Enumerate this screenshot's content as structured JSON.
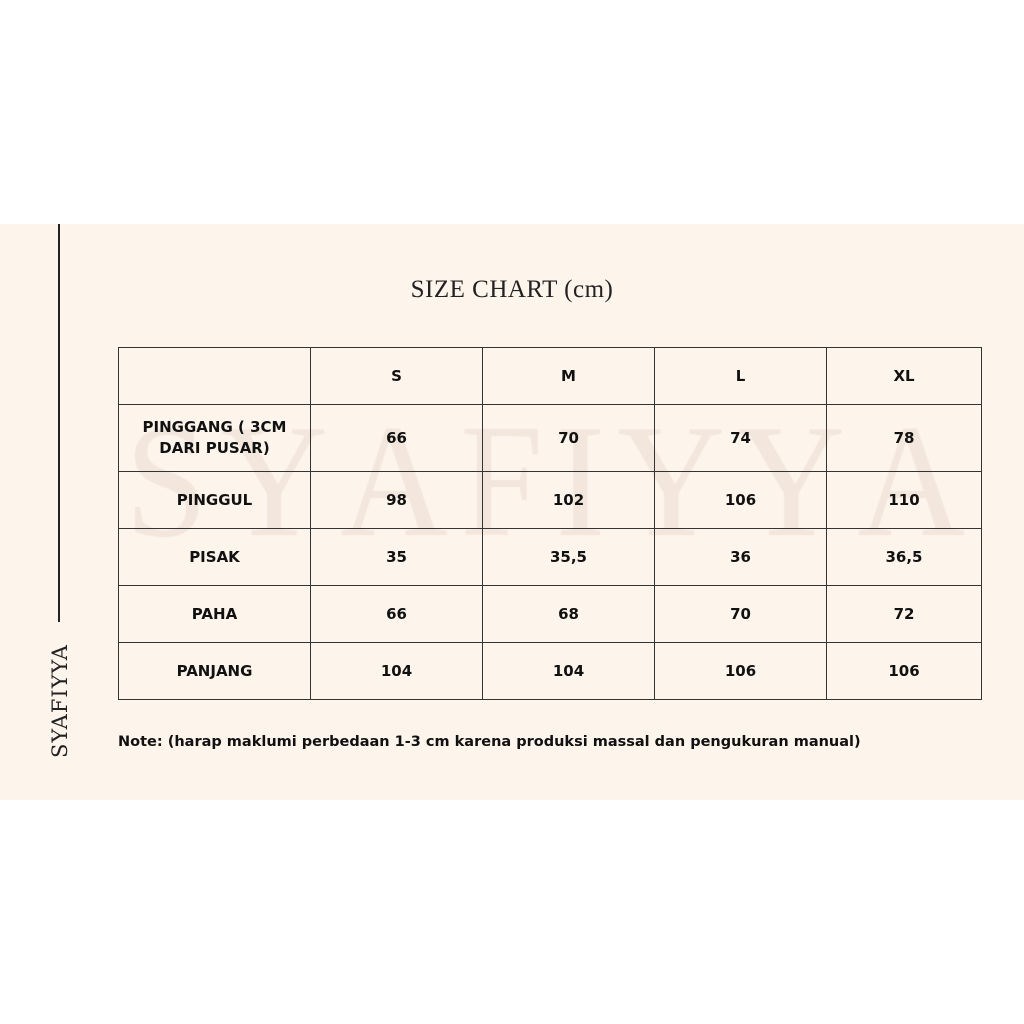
{
  "brand": "SYAFIYYA",
  "watermark": "SYAFIYYA",
  "title": "SIZE CHART (cm)",
  "table": {
    "headers": [
      "",
      "S",
      "M",
      "L",
      "XL"
    ],
    "rows": [
      {
        "label": "PINGGANG ( 3CM DARI PUSAR)",
        "values": [
          "66",
          "70",
          "74",
          "78"
        ]
      },
      {
        "label": "PINGGUL",
        "values": [
          "98",
          "102",
          "106",
          "110"
        ]
      },
      {
        "label": "PISAK",
        "values": [
          "35",
          "35,5",
          "36",
          "36,5"
        ]
      },
      {
        "label": "PAHA",
        "values": [
          "66",
          "68",
          "70",
          "72"
        ]
      },
      {
        "label": "PANJANG",
        "values": [
          "104",
          "104",
          "106",
          "106"
        ]
      }
    ]
  },
  "note": "Note: (harap maklumi perbedaan 1-3 cm karena produksi massal dan pengukuran manual)",
  "colors": {
    "background": "#fdf4ec",
    "text": "#111111",
    "watermark": "#f3e6dc"
  }
}
